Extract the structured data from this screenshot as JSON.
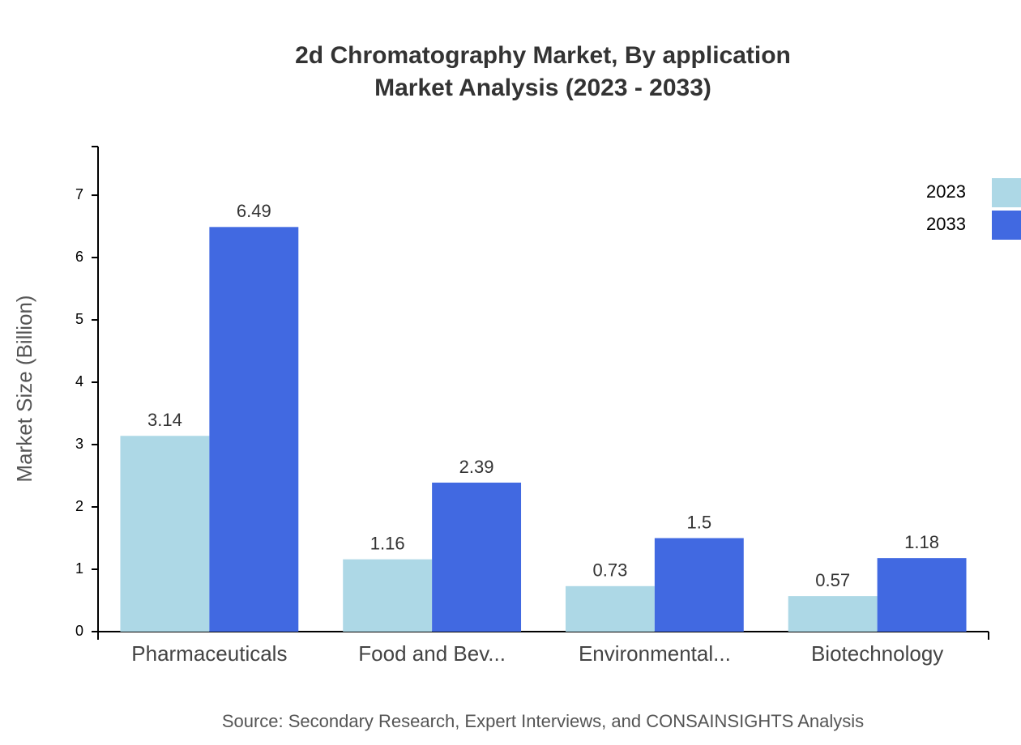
{
  "chart_data": {
    "type": "bar",
    "title": [
      "2d Chromatography Market, By application",
      "Market Analysis (2023 - 2033)"
    ],
    "y_label": "Market Size (Billion)",
    "source": "Source: Secondary Research, Expert Interviews, and CONSAINSIGHTS Analysis",
    "categories": [
      "Pharmaceuticals",
      "Food and Bev...",
      "Environmental...",
      "Biotechnology"
    ],
    "series": [
      {
        "name": "2023",
        "color": "#add8e6",
        "values": [
          3.14,
          1.16,
          0.73,
          0.57
        ]
      },
      {
        "name": "2033",
        "color": "#4169e1",
        "values": [
          6.49,
          2.39,
          1.5,
          1.18
        ]
      }
    ],
    "ylim": [
      0,
      7.78
    ],
    "yticks": [
      0,
      1,
      2,
      3,
      4,
      5,
      6,
      7
    ]
  }
}
